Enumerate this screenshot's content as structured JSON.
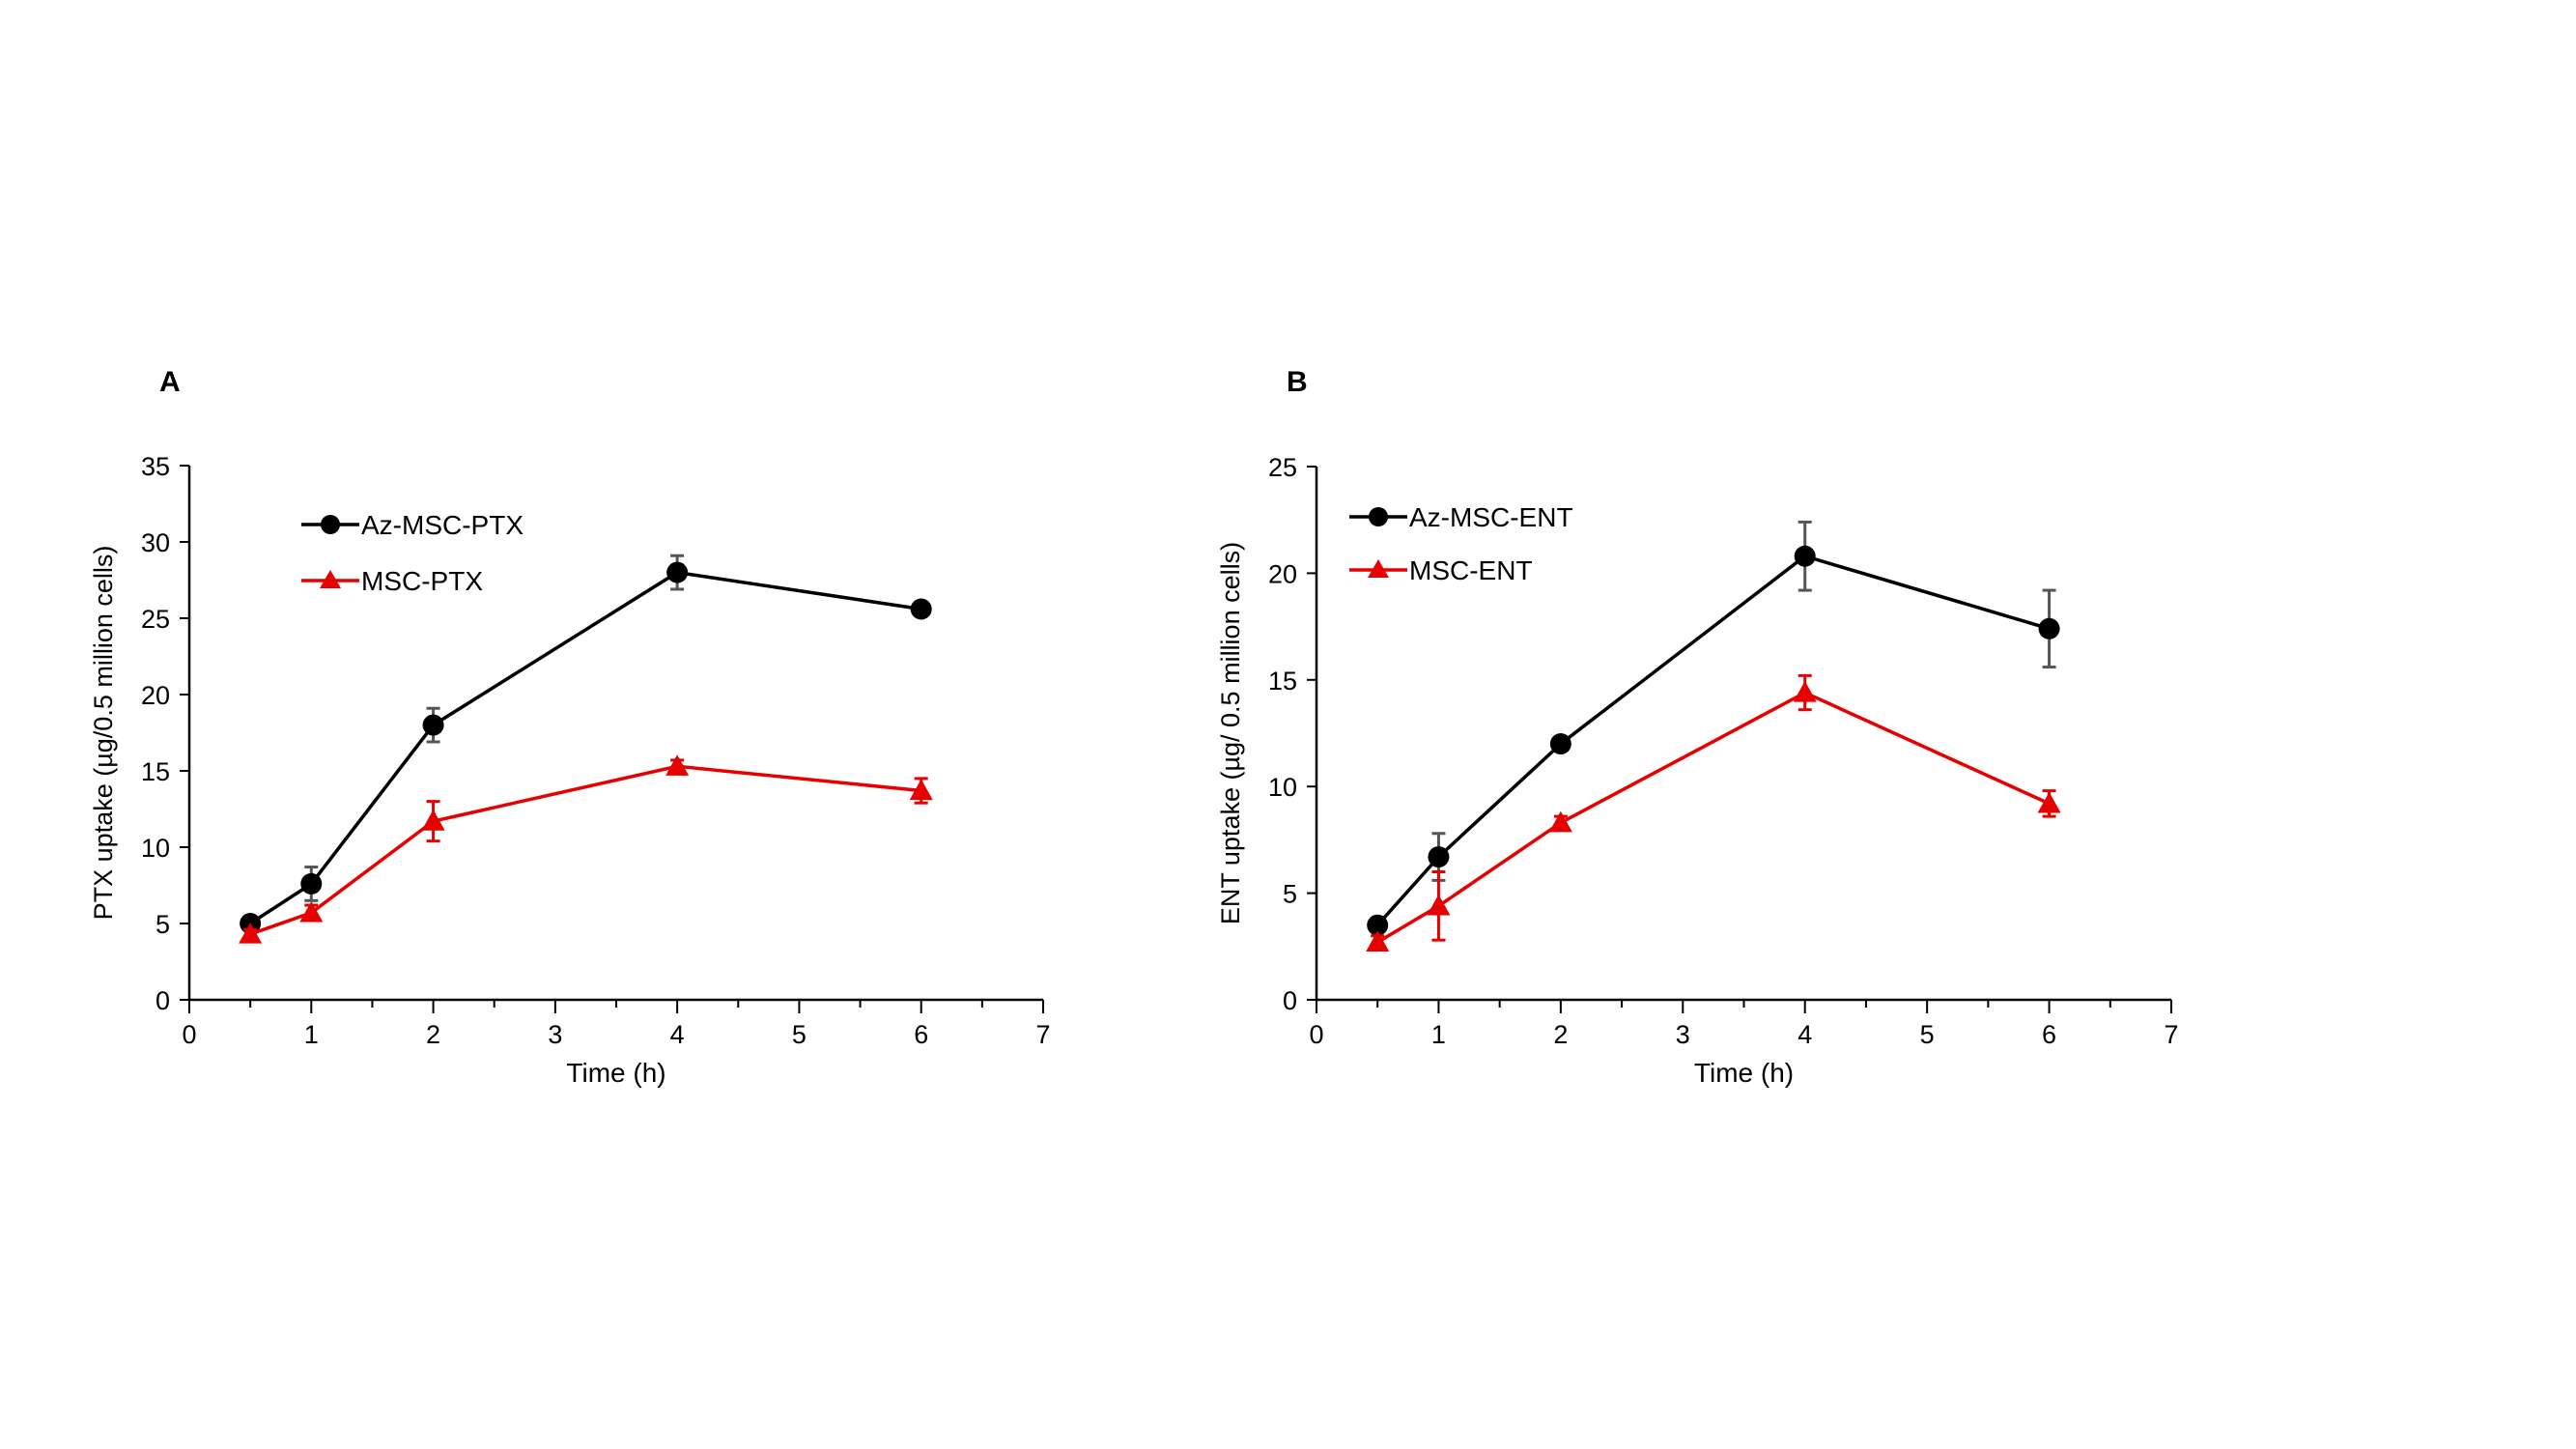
{
  "chart_data": [
    {
      "panel_label": "A",
      "type": "line",
      "xlabel": "Time (h)",
      "ylabel": "PTX uptake (µg/0.5 million cells)",
      "xlim": [
        0,
        7
      ],
      "ylim": [
        0,
        35
      ],
      "x_ticks": [
        "0",
        "1",
        "2",
        "3",
        "4",
        "5",
        "6",
        "7"
      ],
      "y_ticks": [
        "0",
        "5",
        "10",
        "15",
        "20",
        "25",
        "30",
        "35"
      ],
      "grid": false,
      "legend_position": "top-left",
      "x": [
        0.5,
        1,
        2,
        4,
        6
      ],
      "series": [
        {
          "name": "Az-MSC-PTX",
          "marker": "circle",
          "color": "#000000",
          "values": [
            5.0,
            7.6,
            18.0,
            28.0,
            25.6
          ],
          "errors": [
            0.3,
            1.1,
            1.1,
            1.1,
            0.3
          ]
        },
        {
          "name": "MSC-PTX",
          "marker": "triangle",
          "color": "#e60000",
          "values": [
            4.3,
            5.7,
            11.7,
            15.3,
            13.7
          ],
          "errors": [
            0.3,
            0.5,
            1.3,
            0.4,
            0.8
          ]
        }
      ]
    },
    {
      "panel_label": "B",
      "type": "line",
      "xlabel": "Time (h)",
      "ylabel": "ENT uptake (µg/ 0.5 million cells)",
      "xlim": [
        0,
        7
      ],
      "ylim": [
        0,
        25
      ],
      "x_ticks": [
        "0",
        "1",
        "2",
        "3",
        "4",
        "5",
        "6",
        "7"
      ],
      "y_ticks": [
        "0",
        "5",
        "10",
        "15",
        "20",
        "25"
      ],
      "grid": false,
      "legend_position": "top-left",
      "x": [
        0.5,
        1,
        2,
        4,
        6
      ],
      "series": [
        {
          "name": "Az-MSC-ENT",
          "marker": "circle",
          "color": "#000000",
          "values": [
            3.5,
            6.7,
            12.0,
            20.8,
            17.4
          ],
          "errors": [
            0.3,
            1.1,
            0.3,
            1.6,
            1.8
          ]
        },
        {
          "name": "MSC-ENT",
          "marker": "triangle",
          "color": "#e60000",
          "values": [
            2.7,
            4.4,
            8.3,
            14.4,
            9.2
          ],
          "errors": [
            0.3,
            1.6,
            0.3,
            0.8,
            0.6
          ]
        }
      ]
    }
  ]
}
